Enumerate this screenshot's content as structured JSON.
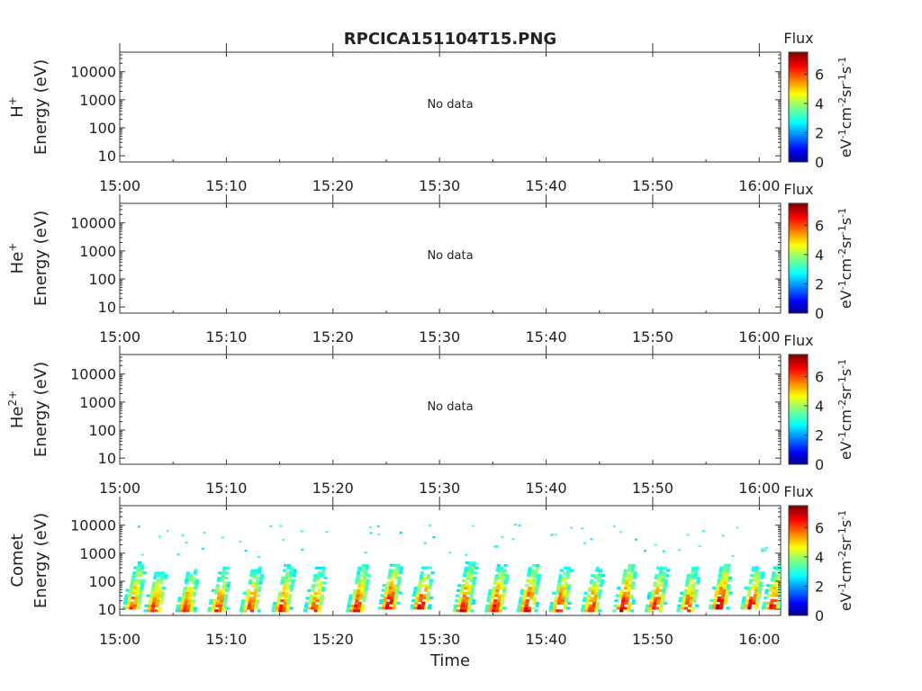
{
  "title": "RPCICA151104T15.PNG",
  "xlabel": "Time",
  "time_ticks": [
    "15:00",
    "15:10",
    "15:20",
    "15:30",
    "15:40",
    "15:50",
    "16:00"
  ],
  "energy_ticks": [
    "10",
    "100",
    "1000",
    "10000"
  ],
  "colorbar": {
    "label": "Flux",
    "unit_parts": [
      "eV",
      "-1",
      "cm",
      "-2",
      "sr",
      "-1",
      "s",
      "-1"
    ],
    "ticks": [
      "0",
      "2",
      "4",
      "6"
    ],
    "range": [
      0,
      7.5
    ]
  },
  "no_data_text": "No data",
  "panels": [
    {
      "species": "H",
      "charge": "+",
      "ylabel": "Energy (eV)",
      "has_data": false
    },
    {
      "species": "He",
      "charge": "+",
      "ylabel": "Energy (eV)",
      "has_data": false
    },
    {
      "species": "He",
      "charge": "2+",
      "ylabel": "Energy (eV)",
      "has_data": false
    },
    {
      "species": "Comet",
      "charge": "",
      "ylabel": "Energy (eV)",
      "has_data": true
    }
  ],
  "chart_data": {
    "type": "heatmap",
    "title": "RPCICA151104T15.PNG",
    "xlabel": "Time",
    "ylabel": "Energy (eV)",
    "x_range": [
      "15:00",
      "16:02"
    ],
    "y_range": [
      6,
      50000
    ],
    "y_scale": "log",
    "colorscale": "jet",
    "colorbar_range": [
      0,
      7.5
    ],
    "comet_bursts": [
      {
        "time": "15:01",
        "e_low": 10,
        "e_high": 500,
        "peak_flux": 6.3
      },
      {
        "time": "15:03",
        "e_low": 8,
        "e_high": 250,
        "peak_flux": 6.6
      },
      {
        "time": "15:06",
        "e_low": 8,
        "e_high": 250,
        "peak_flux": 6.5
      },
      {
        "time": "15:09",
        "e_low": 8,
        "e_high": 300,
        "peak_flux": 6.4
      },
      {
        "time": "15:12",
        "e_low": 8,
        "e_high": 300,
        "peak_flux": 6.6
      },
      {
        "time": "15:15",
        "e_low": 8,
        "e_high": 350,
        "peak_flux": 6.5
      },
      {
        "time": "15:18",
        "e_low": 8,
        "e_high": 300,
        "peak_flux": 6.4
      },
      {
        "time": "15:22",
        "e_low": 8,
        "e_high": 400,
        "peak_flux": 6.7
      },
      {
        "time": "15:25",
        "e_low": 10,
        "e_high": 400,
        "peak_flux": 7.2
      },
      {
        "time": "15:28",
        "e_low": 10,
        "e_high": 300,
        "peak_flux": 7.0
      },
      {
        "time": "15:32",
        "e_low": 8,
        "e_high": 500,
        "peak_flux": 6.8
      },
      {
        "time": "15:35",
        "e_low": 8,
        "e_high": 400,
        "peak_flux": 6.9
      },
      {
        "time": "15:38",
        "e_low": 8,
        "e_high": 400,
        "peak_flux": 7.0
      },
      {
        "time": "15:41",
        "e_low": 8,
        "e_high": 300,
        "peak_flux": 6.8
      },
      {
        "time": "15:44",
        "e_low": 8,
        "e_high": 300,
        "peak_flux": 6.6
      },
      {
        "time": "15:47",
        "e_low": 8,
        "e_high": 400,
        "peak_flux": 7.1
      },
      {
        "time": "15:50",
        "e_low": 8,
        "e_high": 300,
        "peak_flux": 6.8
      },
      {
        "time": "15:53",
        "e_low": 8,
        "e_high": 300,
        "peak_flux": 6.6
      },
      {
        "time": "15:56",
        "e_low": 10,
        "e_high": 350,
        "peak_flux": 7.2
      },
      {
        "time": "15:59",
        "e_low": 10,
        "e_high": 300,
        "peak_flux": 6.9
      },
      {
        "time": "16:01",
        "e_low": 10,
        "e_high": 400,
        "peak_flux": 6.6
      }
    ]
  }
}
